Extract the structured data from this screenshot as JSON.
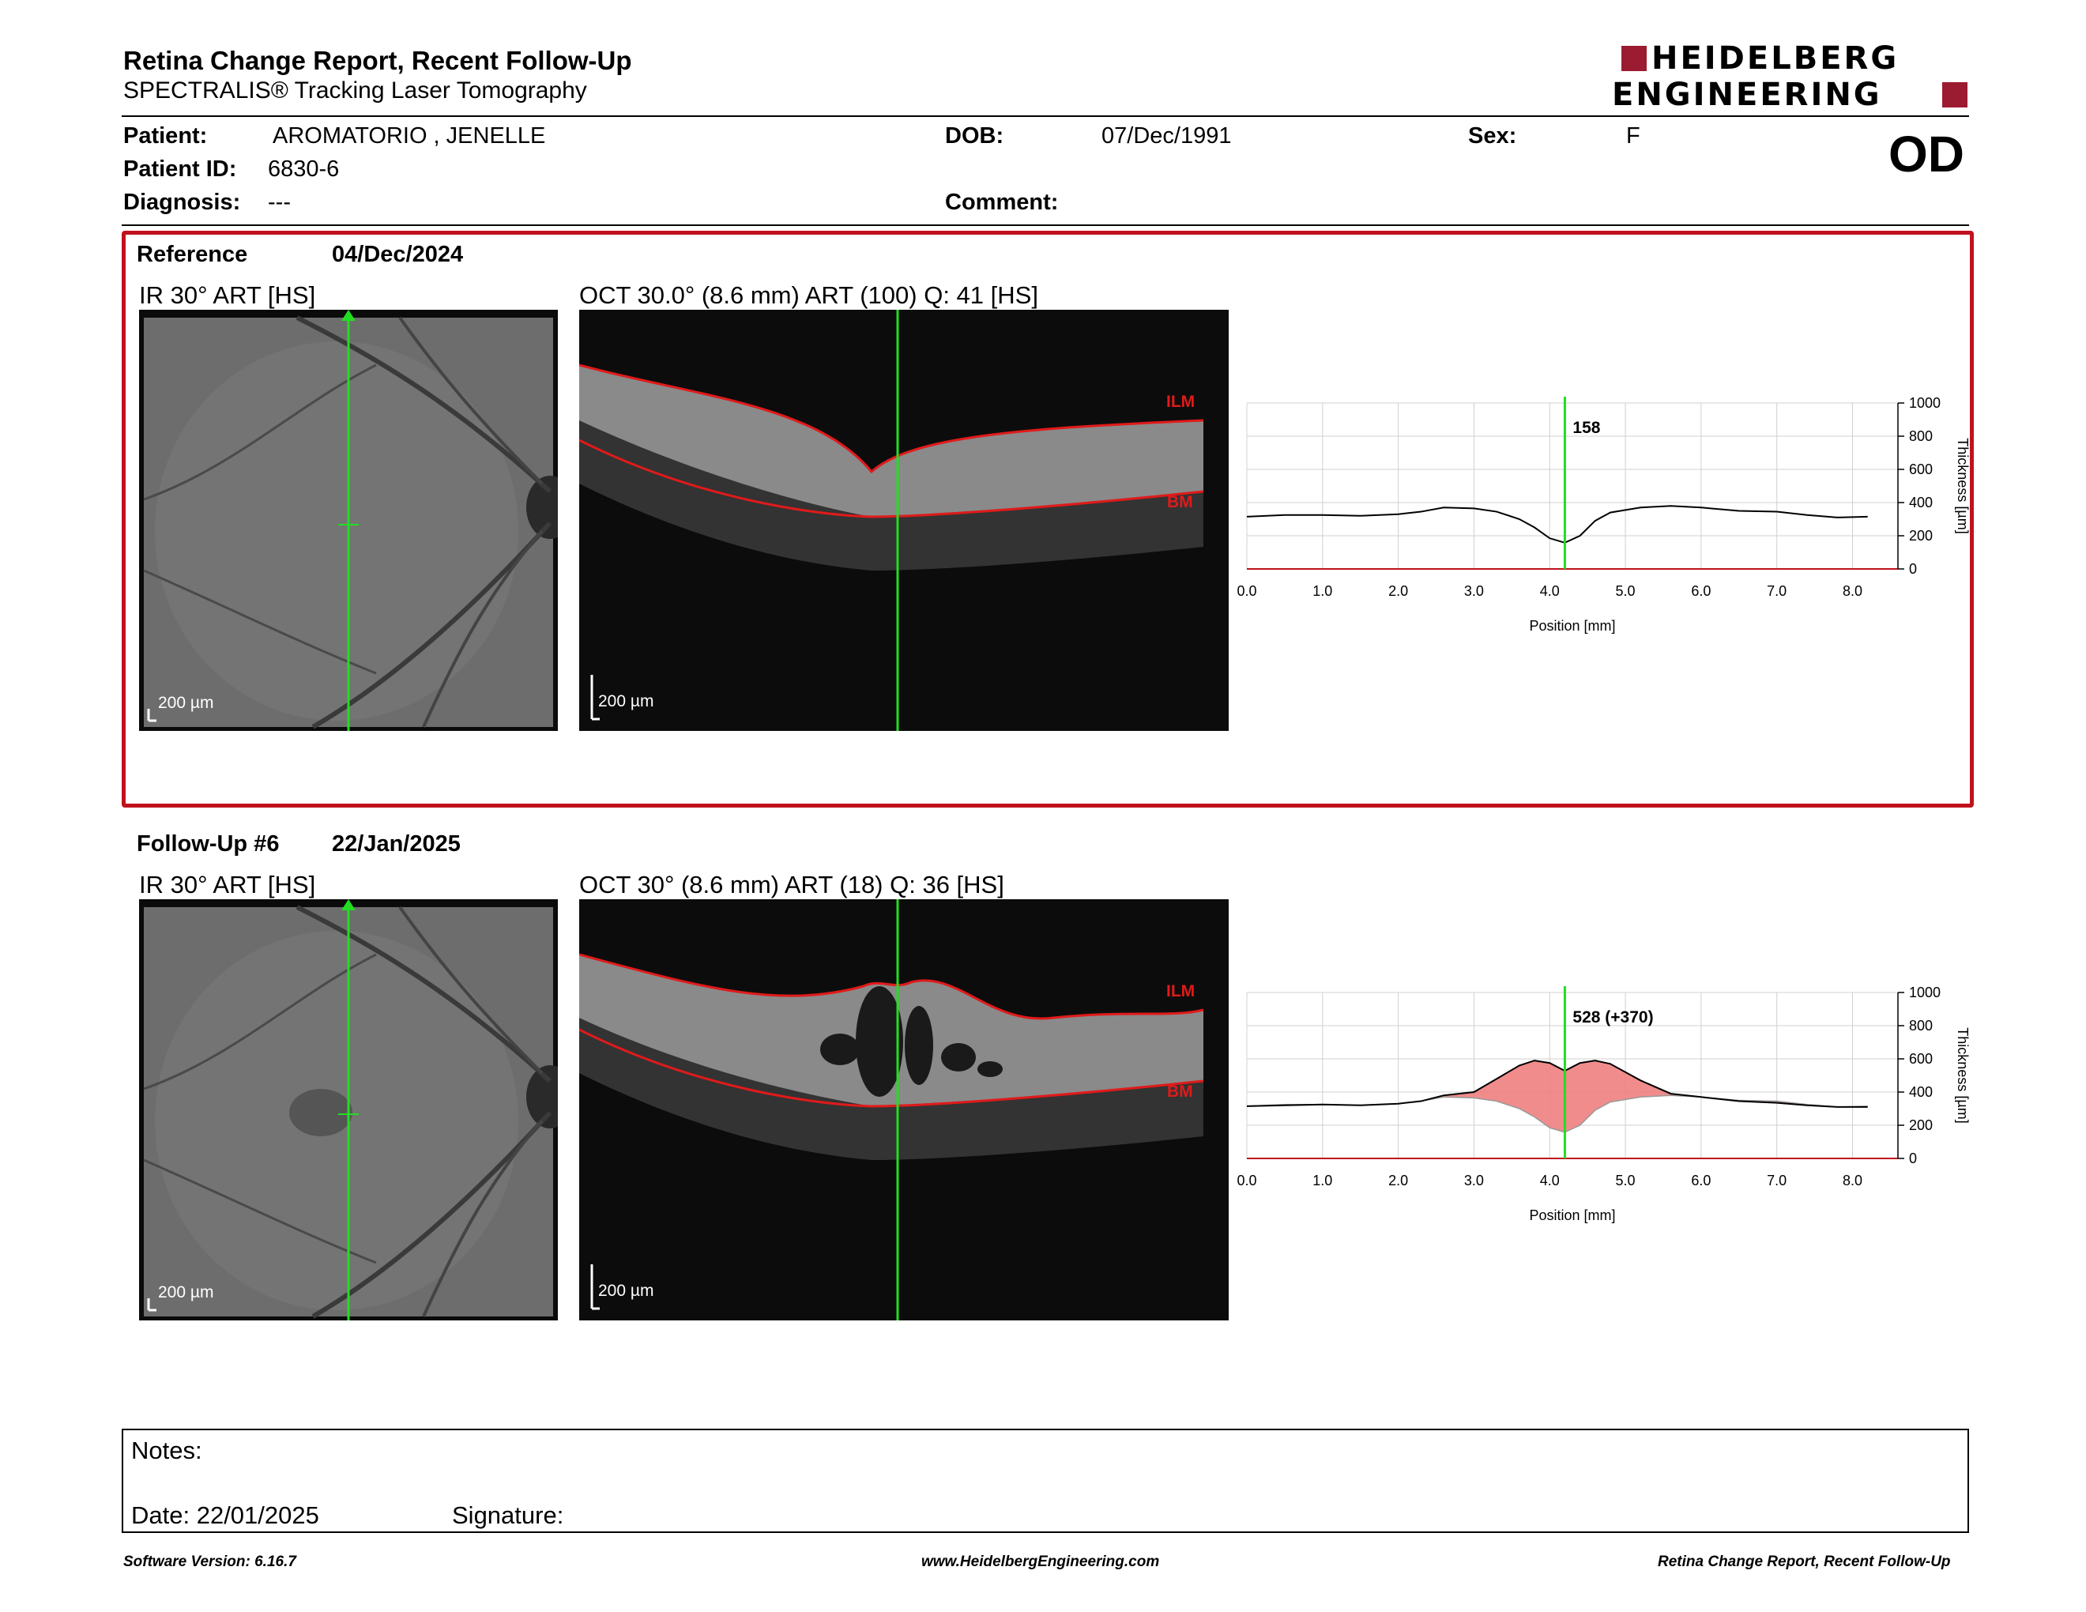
{
  "header": {
    "title": "Retina Change Report, Recent Follow-Up",
    "subtitle": "SPECTRALIS® Tracking Laser Tomography",
    "logo_line1": "HEIDELBERG",
    "logo_line2": "ENGINEERING"
  },
  "patient": {
    "name_label": "Patient:",
    "name": "AROMATORIO , JENELLE",
    "id_label": "Patient ID:",
    "id": "6830-6",
    "diagnosis_label": "Diagnosis:",
    "diagnosis": "---",
    "dob_label": "DOB:",
    "dob": "07/Dec/1991",
    "comment_label": "Comment:",
    "sex_label": "Sex:",
    "sex": "F",
    "eye": "OD"
  },
  "reference": {
    "label": "Reference",
    "date": "04/Dec/2024",
    "ir_title": "IR 30° ART [HS]",
    "oct_title": "OCT 30.0° (8.6 mm) ART (100) Q: 41 [HS]",
    "scale": "200 µm",
    "ilm": "ILM",
    "bm": "BM",
    "marker_value": "158"
  },
  "followup": {
    "label": "Follow-Up #6",
    "date": "22/Jan/2025",
    "ir_title": "IR 30° ART [HS]",
    "oct_title": "OCT 30° (8.6 mm) ART (18) Q: 36 [HS]",
    "scale": "200 µm",
    "ilm": "ILM",
    "bm": "BM",
    "marker_value": "528 (+370)"
  },
  "chart_data": [
    {
      "type": "line",
      "xlabel": "Position [mm]",
      "ylabel": "Thickness [µm]",
      "xlim": [
        0,
        8.6
      ],
      "ylim": [
        0,
        1000
      ],
      "xticks": [
        "0.0",
        "1.0",
        "2.0",
        "3.0",
        "4.0",
        "5.0",
        "6.0",
        "7.0",
        "8.0"
      ],
      "yticks": [
        "0",
        "200",
        "400",
        "600",
        "800",
        "1000"
      ],
      "marker_x": 4.2,
      "series": [
        {
          "x": [
            0,
            0.5,
            1.0,
            1.5,
            2.0,
            2.3,
            2.6,
            3.0,
            3.3,
            3.6,
            3.8,
            4.0,
            4.2,
            4.4,
            4.6,
            4.8,
            5.2,
            5.6,
            6.0,
            6.5,
            7.0,
            7.4,
            7.8,
            8.2
          ],
          "values": [
            315,
            325,
            325,
            320,
            330,
            345,
            370,
            365,
            345,
            300,
            250,
            185,
            158,
            200,
            290,
            340,
            370,
            380,
            370,
            350,
            345,
            325,
            310,
            315
          ]
        }
      ]
    },
    {
      "type": "area",
      "xlabel": "Position [mm]",
      "ylabel": "Thickness [µm]",
      "xlim": [
        0,
        8.6
      ],
      "ylim": [
        0,
        1000
      ],
      "xticks": [
        "0.0",
        "1.0",
        "2.0",
        "3.0",
        "4.0",
        "5.0",
        "6.0",
        "7.0",
        "8.0"
      ],
      "yticks": [
        "0",
        "200",
        "400",
        "600",
        "800",
        "1000"
      ],
      "marker_x": 4.2,
      "change_color": "#f08080",
      "series": [
        {
          "x": [
            0,
            0.5,
            1.0,
            1.5,
            2.0,
            2.3,
            2.6,
            3.0,
            3.3,
            3.6,
            3.8,
            4.0,
            4.2,
            4.4,
            4.6,
            4.8,
            5.2,
            5.6,
            6.0,
            6.5,
            7.0,
            7.4,
            7.8,
            8.2
          ],
          "values": [
            315,
            320,
            325,
            320,
            330,
            345,
            380,
            400,
            480,
            560,
            590,
            575,
            528,
            575,
            590,
            570,
            470,
            390,
            370,
            345,
            335,
            320,
            310,
            310
          ]
        }
      ]
    }
  ],
  "notes": {
    "label": "Notes:",
    "date_label": "Date: 22/01/2025",
    "signature_label": "Signature:"
  },
  "footer": {
    "software": "Software Version: 6.16.7",
    "website": "www.HeidelbergEngineering.com",
    "report": "Retina Change Report, Recent Follow-Up"
  },
  "colors": {
    "accent": "#9b1b30",
    "reference_border": "#c0121e",
    "scan_line": "#22dd22",
    "ilm_bm": "#e11a1a"
  }
}
